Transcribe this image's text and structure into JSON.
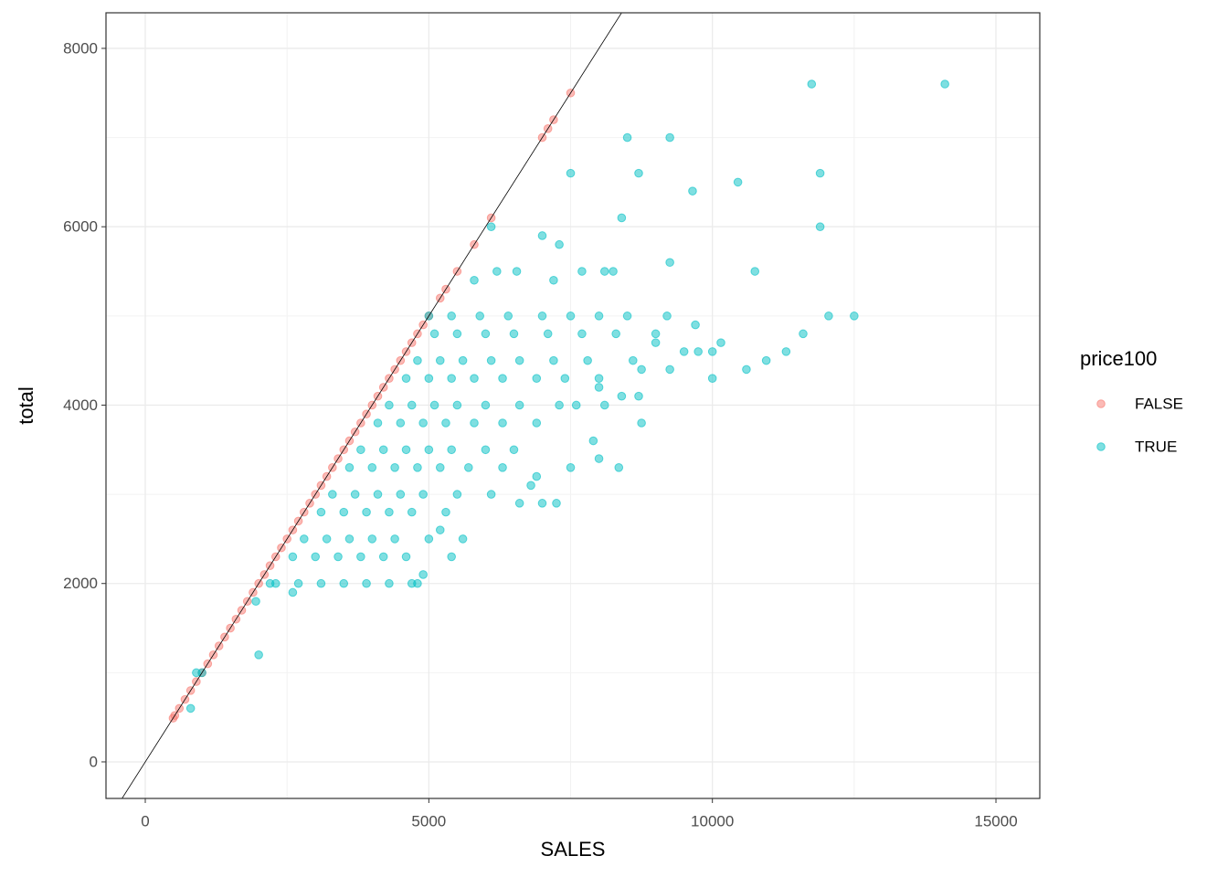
{
  "chart_data": {
    "type": "scatter",
    "x_label": "SALES",
    "y_label": "total",
    "legend_title": "price100",
    "legend_position": "right",
    "grid": true,
    "xlim": [
      -693,
      15773
    ],
    "ylim": [
      -410,
      8399
    ],
    "xticks": [
      0,
      5000,
      10000,
      15000
    ],
    "yticks": [
      0,
      2000,
      4000,
      6000,
      8000
    ],
    "abline": {
      "intercept": 0,
      "slope": 1,
      "color": "#000000"
    },
    "series": [
      {
        "name": "FALSE",
        "color": "#F8766D",
        "x": [
          490,
          520,
          600,
          700,
          800,
          900,
          1000,
          1100,
          1200,
          1300,
          1400,
          1500,
          1600,
          1700,
          1800,
          1900,
          2000,
          2100,
          2200,
          2300,
          2400,
          2500,
          2600,
          2700,
          2800,
          2900,
          3000,
          3100,
          3200,
          3300,
          3400,
          3500,
          3600,
          3700,
          3800,
          3900,
          4000,
          4100,
          4200,
          4300,
          4400,
          4500,
          4600,
          4700,
          4800,
          4900,
          5000,
          5200,
          5300,
          5500,
          5800,
          6100,
          7000,
          7100,
          7200,
          7500
        ],
        "values": [
          490,
          520,
          600,
          700,
          800,
          900,
          1000,
          1100,
          1200,
          1300,
          1400,
          1500,
          1600,
          1700,
          1800,
          1900,
          2000,
          2100,
          2200,
          2300,
          2400,
          2500,
          2600,
          2700,
          2800,
          2900,
          3000,
          3100,
          3200,
          3300,
          3400,
          3500,
          3600,
          3700,
          3800,
          3900,
          4000,
          4100,
          4200,
          4300,
          4400,
          4500,
          4600,
          4700,
          4800,
          4900,
          5000,
          5200,
          5300,
          5500,
          5800,
          6100,
          7000,
          7100,
          7200,
          7500
        ]
      },
      {
        "name": "TRUE",
        "color": "#00BFC4",
        "x": [
          14100,
          11750,
          8500,
          9250,
          7500,
          8700,
          11900,
          9650,
          10450,
          8400,
          11900,
          6100,
          7000,
          7300,
          9250,
          5800,
          7200,
          6200,
          6550,
          7700,
          8100,
          8250,
          10750,
          12500,
          12050,
          11600,
          11300,
          10950,
          10600,
          10000,
          10150,
          10000,
          9250,
          9700,
          9000,
          9500,
          9750,
          8750,
          8700,
          8400,
          8000,
          8750,
          8350,
          8000,
          7900,
          7500,
          7250,
          7000,
          6600,
          6800,
          6900,
          5400,
          4900,
          5200,
          4800,
          2000,
          900,
          1000,
          800,
          2600,
          1950,
          2200,
          2300,
          2700,
          3100,
          3500,
          3900,
          4300,
          4700,
          2600,
          3000,
          3400,
          3800,
          4200,
          4600,
          2800,
          3200,
          3600,
          4000,
          4400,
          5000,
          5600,
          3100,
          3500,
          3900,
          4300,
          4700,
          5300,
          3300,
          3700,
          4100,
          4500,
          4900,
          5500,
          6100,
          3600,
          4000,
          4400,
          4800,
          5200,
          5700,
          6300,
          3800,
          4200,
          4600,
          5000,
          5400,
          6000,
          6500,
          4100,
          4500,
          4900,
          5300,
          5800,
          6300,
          6900,
          4300,
          4700,
          5100,
          5500,
          6000,
          6600,
          7300,
          7600,
          8100,
          4600,
          5000,
          5400,
          5800,
          6300,
          6900,
          7400,
          8000,
          4800,
          5200,
          5600,
          6100,
          6600,
          7200,
          7800,
          8600,
          5100,
          5500,
          6000,
          6500,
          7100,
          7700,
          8300,
          9000,
          5000,
          5400,
          5900,
          6400,
          7000,
          7500,
          8000,
          8500,
          9200
        ],
        "values": [
          7600,
          7600,
          7000,
          7000,
          6600,
          6600,
          6600,
          6400,
          6500,
          6100,
          6000,
          6000,
          5900,
          5800,
          5600,
          5400,
          5400,
          5500,
          5500,
          5500,
          5500,
          5500,
          5500,
          5000,
          5000,
          4800,
          4600,
          4500,
          4400,
          4300,
          4700,
          4600,
          4400,
          4900,
          4700,
          4600,
          4600,
          4400,
          4100,
          4100,
          4200,
          3800,
          3300,
          3400,
          3600,
          3300,
          2900,
          2900,
          2900,
          3100,
          3200,
          2300,
          2100,
          2600,
          2000,
          1200,
          1000,
          1000,
          600,
          1900,
          1800,
          2000,
          2000,
          2000,
          2000,
          2000,
          2000,
          2000,
          2000,
          2300,
          2300,
          2300,
          2300,
          2300,
          2300,
          2500,
          2500,
          2500,
          2500,
          2500,
          2500,
          2500,
          2800,
          2800,
          2800,
          2800,
          2800,
          2800,
          3000,
          3000,
          3000,
          3000,
          3000,
          3000,
          3000,
          3300,
          3300,
          3300,
          3300,
          3300,
          3300,
          3300,
          3500,
          3500,
          3500,
          3500,
          3500,
          3500,
          3500,
          3800,
          3800,
          3800,
          3800,
          3800,
          3800,
          3800,
          4000,
          4000,
          4000,
          4000,
          4000,
          4000,
          4000,
          4000,
          4000,
          4300,
          4300,
          4300,
          4300,
          4300,
          4300,
          4300,
          4300,
          4500,
          4500,
          4500,
          4500,
          4500,
          4500,
          4500,
          4500,
          4800,
          4800,
          4800,
          4800,
          4800,
          4800,
          4800,
          4800,
          5000,
          5000,
          5000,
          5000,
          5000,
          5000,
          5000,
          5000,
          5000
        ]
      }
    ]
  }
}
